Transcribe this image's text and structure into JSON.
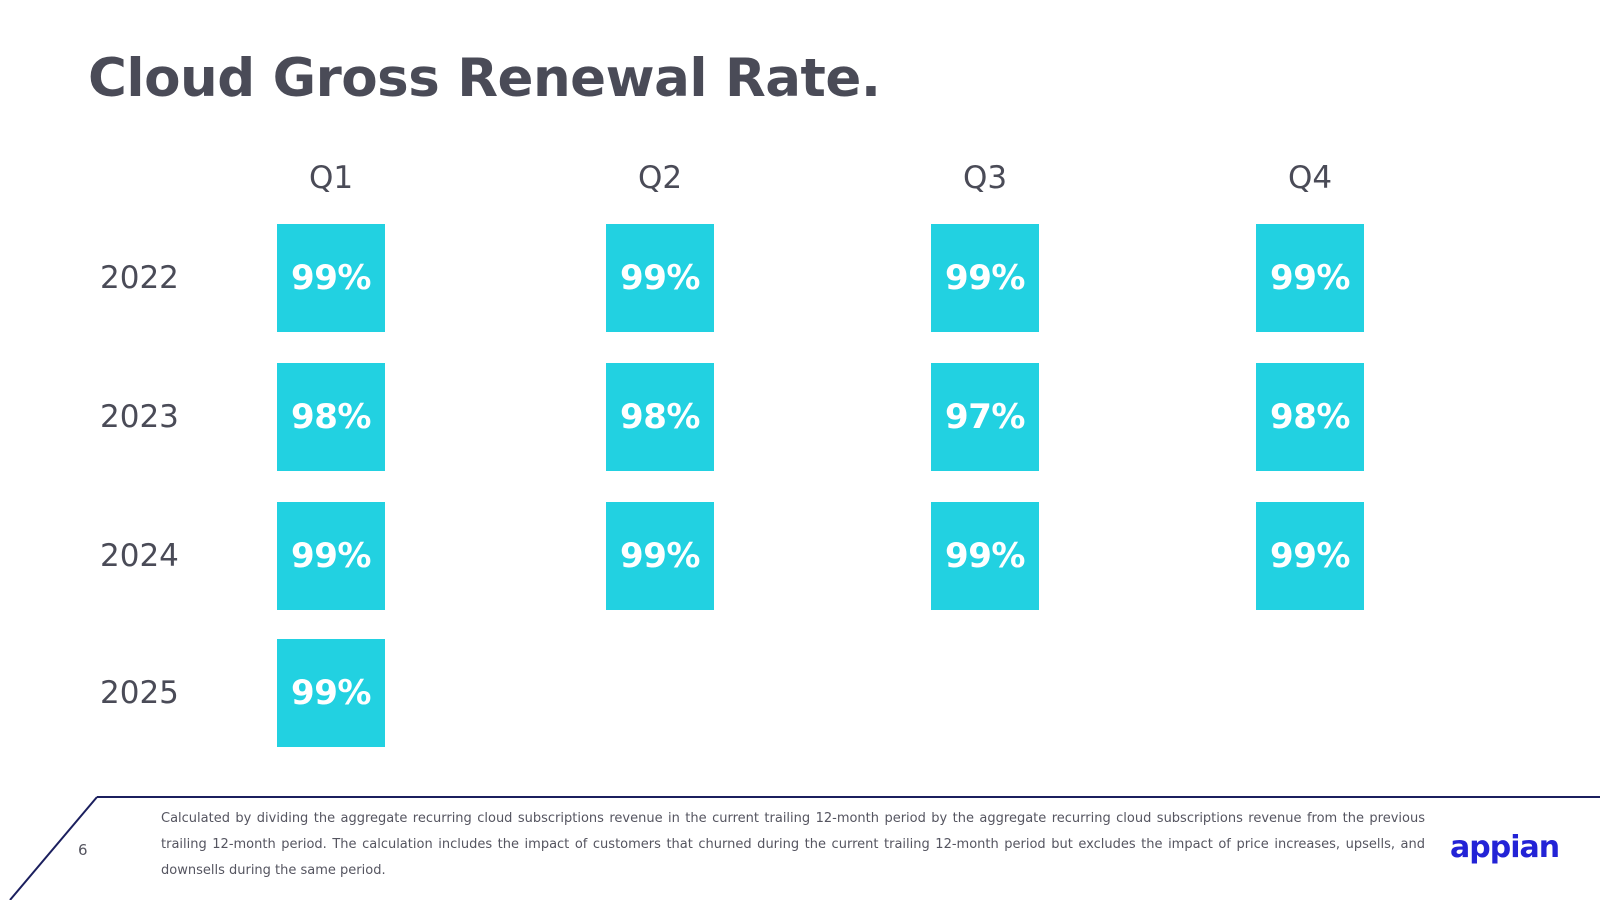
{
  "title": "Cloud Gross Renewal Rate.",
  "quarters": [
    "Q1",
    "Q2",
    "Q3",
    "Q4"
  ],
  "rows": [
    {
      "year": "2022",
      "values": [
        "99%",
        "99%",
        "99%",
        "99%"
      ]
    },
    {
      "year": "2023",
      "values": [
        "98%",
        "98%",
        "97%",
        "98%"
      ]
    },
    {
      "year": "2024",
      "values": [
        "99%",
        "99%",
        "99%",
        "99%"
      ]
    },
    {
      "year": "2025",
      "values": [
        "99%"
      ]
    }
  ],
  "footer": {
    "page_number": "6",
    "footnote": "Calculated by dividing the aggregate recurring cloud subscriptions revenue in the current trailing 12-month period by the aggregate recurring cloud subscriptions revenue from the previous trailing 12-month period. The calculation includes the impact of customers that churned during the current trailing 12-month period but excludes the impact of price increases, upsells, and downsells during the same period.",
    "logo_text": "appian"
  },
  "colors": {
    "tile": "#22d1e1",
    "title": "#4a4b57",
    "footer_line": "#1b1f5e",
    "logo": "#2323d6"
  }
}
